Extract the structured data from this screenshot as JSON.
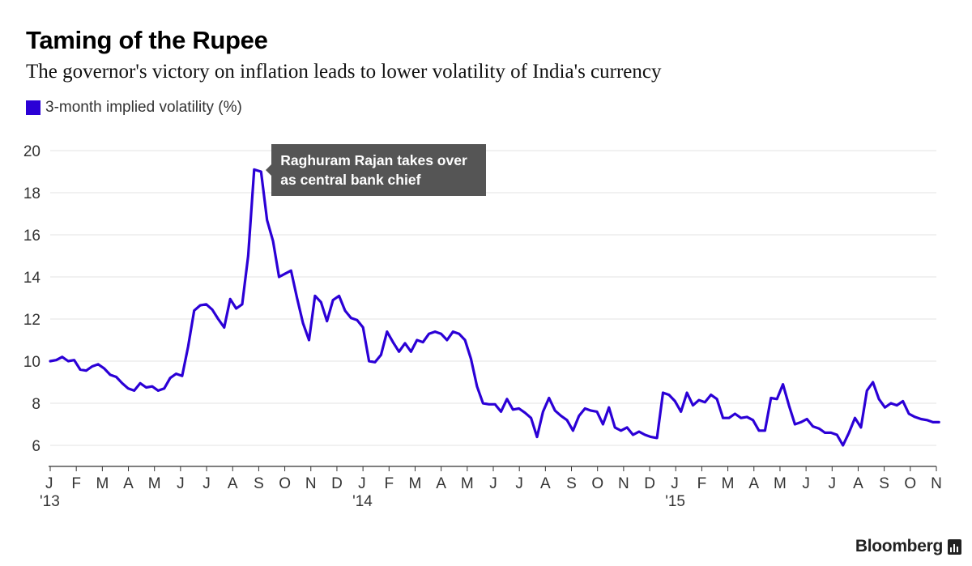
{
  "header": {
    "title": "Taming of the Rupee",
    "subtitle": "The governor's victory on inflation leads to lower volatility of India's currency"
  },
  "legend": {
    "label": "3-month implied volatility (%)",
    "color": "#2b00d6"
  },
  "annotation": {
    "text": "Raghuram Rajan takes over as central bank chief",
    "color": "#555555"
  },
  "brand": {
    "name": "Bloomberg",
    "icon": "bloomberg-terminal-icon"
  },
  "chart_data": {
    "type": "line",
    "title": "Taming of the Rupee",
    "xlabel": "",
    "ylabel": "",
    "ylim": [
      5,
      20
    ],
    "yticks": [
      6,
      8,
      10,
      12,
      14,
      16,
      18,
      20
    ],
    "grid": true,
    "legend_position": "top-left",
    "x_tick_labels": [
      {
        "month": "J",
        "year": "'13"
      },
      {
        "month": "F"
      },
      {
        "month": "M"
      },
      {
        "month": "A"
      },
      {
        "month": "M"
      },
      {
        "month": "J"
      },
      {
        "month": "J"
      },
      {
        "month": "A"
      },
      {
        "month": "S"
      },
      {
        "month": "O"
      },
      {
        "month": "N"
      },
      {
        "month": "D"
      },
      {
        "month": "J",
        "year": "'14"
      },
      {
        "month": "F"
      },
      {
        "month": "M"
      },
      {
        "month": "A"
      },
      {
        "month": "M"
      },
      {
        "month": "J"
      },
      {
        "month": "J"
      },
      {
        "month": "A"
      },
      {
        "month": "S"
      },
      {
        "month": "O"
      },
      {
        "month": "N"
      },
      {
        "month": "D"
      },
      {
        "month": "J",
        "year": "'15"
      },
      {
        "month": "F"
      },
      {
        "month": "M"
      },
      {
        "month": "A"
      },
      {
        "month": "M"
      },
      {
        "month": "J"
      },
      {
        "month": "J"
      },
      {
        "month": "A"
      },
      {
        "month": "S"
      },
      {
        "month": "O"
      },
      {
        "month": "N"
      }
    ],
    "x_range": [
      "2013-01-01",
      "2015-11-01"
    ],
    "annotation_point": {
      "date": "2013-09-04",
      "value": 19.1
    },
    "series": [
      {
        "name": "3-month implied volatility (%)",
        "color": "#2b00d6",
        "points": [
          [
            "2013-01-01",
            10.0
          ],
          [
            "2013-01-08",
            10.05
          ],
          [
            "2013-01-15",
            10.2
          ],
          [
            "2013-01-22",
            10.0
          ],
          [
            "2013-01-29",
            10.05
          ],
          [
            "2013-02-05",
            9.6
          ],
          [
            "2013-02-12",
            9.55
          ],
          [
            "2013-02-19",
            9.75
          ],
          [
            "2013-02-26",
            9.85
          ],
          [
            "2013-03-05",
            9.65
          ],
          [
            "2013-03-12",
            9.35
          ],
          [
            "2013-03-19",
            9.25
          ],
          [
            "2013-03-26",
            8.95
          ],
          [
            "2013-04-02",
            8.7
          ],
          [
            "2013-04-09",
            8.6
          ],
          [
            "2013-04-16",
            8.95
          ],
          [
            "2013-04-23",
            8.75
          ],
          [
            "2013-04-30",
            8.8
          ],
          [
            "2013-05-07",
            8.6
          ],
          [
            "2013-05-14",
            8.7
          ],
          [
            "2013-05-21",
            9.2
          ],
          [
            "2013-05-28",
            9.4
          ],
          [
            "2013-06-04",
            9.3
          ],
          [
            "2013-06-11",
            10.7
          ],
          [
            "2013-06-18",
            12.4
          ],
          [
            "2013-06-25",
            12.65
          ],
          [
            "2013-07-02",
            12.7
          ],
          [
            "2013-07-09",
            12.45
          ],
          [
            "2013-07-16",
            12.0
          ],
          [
            "2013-07-23",
            11.6
          ],
          [
            "2013-07-30",
            12.95
          ],
          [
            "2013-08-06",
            12.5
          ],
          [
            "2013-08-13",
            12.7
          ],
          [
            "2013-08-20",
            15.0
          ],
          [
            "2013-08-27",
            19.1
          ],
          [
            "2013-09-04",
            19.0
          ],
          [
            "2013-09-11",
            16.7
          ],
          [
            "2013-09-18",
            15.7
          ],
          [
            "2013-09-25",
            14.0
          ],
          [
            "2013-10-02",
            14.15
          ],
          [
            "2013-10-09",
            14.3
          ],
          [
            "2013-10-16",
            13.0
          ],
          [
            "2013-10-23",
            11.8
          ],
          [
            "2013-10-30",
            11.0
          ],
          [
            "2013-11-06",
            13.1
          ],
          [
            "2013-11-13",
            12.8
          ],
          [
            "2013-11-20",
            11.9
          ],
          [
            "2013-11-27",
            12.9
          ],
          [
            "2013-12-04",
            13.1
          ],
          [
            "2013-12-11",
            12.4
          ],
          [
            "2013-12-18",
            12.05
          ],
          [
            "2013-12-25",
            11.95
          ],
          [
            "2014-01-01",
            11.6
          ],
          [
            "2014-01-08",
            10.0
          ],
          [
            "2014-01-15",
            9.95
          ],
          [
            "2014-01-22",
            10.3
          ],
          [
            "2014-01-29",
            11.4
          ],
          [
            "2014-02-05",
            10.9
          ],
          [
            "2014-02-12",
            10.45
          ],
          [
            "2014-02-19",
            10.85
          ],
          [
            "2014-02-26",
            10.45
          ],
          [
            "2014-03-05",
            11.0
          ],
          [
            "2014-03-12",
            10.9
          ],
          [
            "2014-03-19",
            11.3
          ],
          [
            "2014-03-26",
            11.4
          ],
          [
            "2014-04-02",
            11.3
          ],
          [
            "2014-04-09",
            11.0
          ],
          [
            "2014-04-16",
            11.4
          ],
          [
            "2014-04-23",
            11.3
          ],
          [
            "2014-04-30",
            11.0
          ],
          [
            "2014-05-07",
            10.1
          ],
          [
            "2014-05-14",
            8.8
          ],
          [
            "2014-05-21",
            8.0
          ],
          [
            "2014-05-28",
            7.95
          ],
          [
            "2014-06-04",
            7.95
          ],
          [
            "2014-06-11",
            7.6
          ],
          [
            "2014-06-18",
            8.2
          ],
          [
            "2014-06-25",
            7.7
          ],
          [
            "2014-07-02",
            7.75
          ],
          [
            "2014-07-09",
            7.55
          ],
          [
            "2014-07-16",
            7.3
          ],
          [
            "2014-07-23",
            6.4
          ],
          [
            "2014-07-30",
            7.6
          ],
          [
            "2014-08-06",
            8.25
          ],
          [
            "2014-08-13",
            7.65
          ],
          [
            "2014-08-20",
            7.4
          ],
          [
            "2014-08-27",
            7.2
          ],
          [
            "2014-09-03",
            6.7
          ],
          [
            "2014-09-10",
            7.4
          ],
          [
            "2014-09-17",
            7.75
          ],
          [
            "2014-09-24",
            7.65
          ],
          [
            "2014-10-01",
            7.6
          ],
          [
            "2014-10-08",
            7.0
          ],
          [
            "2014-10-15",
            7.8
          ],
          [
            "2014-10-22",
            6.85
          ],
          [
            "2014-10-29",
            6.7
          ],
          [
            "2014-11-05",
            6.85
          ],
          [
            "2014-11-12",
            6.5
          ],
          [
            "2014-11-19",
            6.65
          ],
          [
            "2014-11-26",
            6.5
          ],
          [
            "2014-12-03",
            6.4
          ],
          [
            "2014-12-10",
            6.35
          ],
          [
            "2014-12-17",
            8.5
          ],
          [
            "2014-12-24",
            8.4
          ],
          [
            "2014-12-31",
            8.1
          ],
          [
            "2015-01-07",
            7.6
          ],
          [
            "2015-01-14",
            8.5
          ],
          [
            "2015-01-21",
            7.9
          ],
          [
            "2015-01-28",
            8.15
          ],
          [
            "2015-02-04",
            8.05
          ],
          [
            "2015-02-11",
            8.4
          ],
          [
            "2015-02-18",
            8.2
          ],
          [
            "2015-02-25",
            7.3
          ],
          [
            "2015-03-04",
            7.3
          ],
          [
            "2015-03-11",
            7.5
          ],
          [
            "2015-03-18",
            7.3
          ],
          [
            "2015-03-25",
            7.35
          ],
          [
            "2015-04-01",
            7.2
          ],
          [
            "2015-04-08",
            6.7
          ],
          [
            "2015-04-15",
            6.7
          ],
          [
            "2015-04-22",
            8.25
          ],
          [
            "2015-04-29",
            8.2
          ],
          [
            "2015-05-06",
            8.9
          ],
          [
            "2015-05-13",
            7.9
          ],
          [
            "2015-05-20",
            7.0
          ],
          [
            "2015-05-27",
            7.1
          ],
          [
            "2015-06-03",
            7.25
          ],
          [
            "2015-06-10",
            6.9
          ],
          [
            "2015-06-17",
            6.8
          ],
          [
            "2015-06-24",
            6.6
          ],
          [
            "2015-07-01",
            6.6
          ],
          [
            "2015-07-08",
            6.5
          ],
          [
            "2015-07-15",
            6.0
          ],
          [
            "2015-07-22",
            6.6
          ],
          [
            "2015-07-29",
            7.3
          ],
          [
            "2015-08-05",
            6.85
          ],
          [
            "2015-08-12",
            8.6
          ],
          [
            "2015-08-19",
            9.0
          ],
          [
            "2015-08-26",
            8.2
          ],
          [
            "2015-09-02",
            7.8
          ],
          [
            "2015-09-09",
            8.0
          ],
          [
            "2015-09-16",
            7.9
          ],
          [
            "2015-09-23",
            8.1
          ],
          [
            "2015-09-30",
            7.5
          ],
          [
            "2015-10-07",
            7.35
          ],
          [
            "2015-10-14",
            7.25
          ],
          [
            "2015-10-21",
            7.2
          ],
          [
            "2015-10-28",
            7.1
          ],
          [
            "2015-11-04",
            7.1
          ]
        ]
      }
    ]
  }
}
